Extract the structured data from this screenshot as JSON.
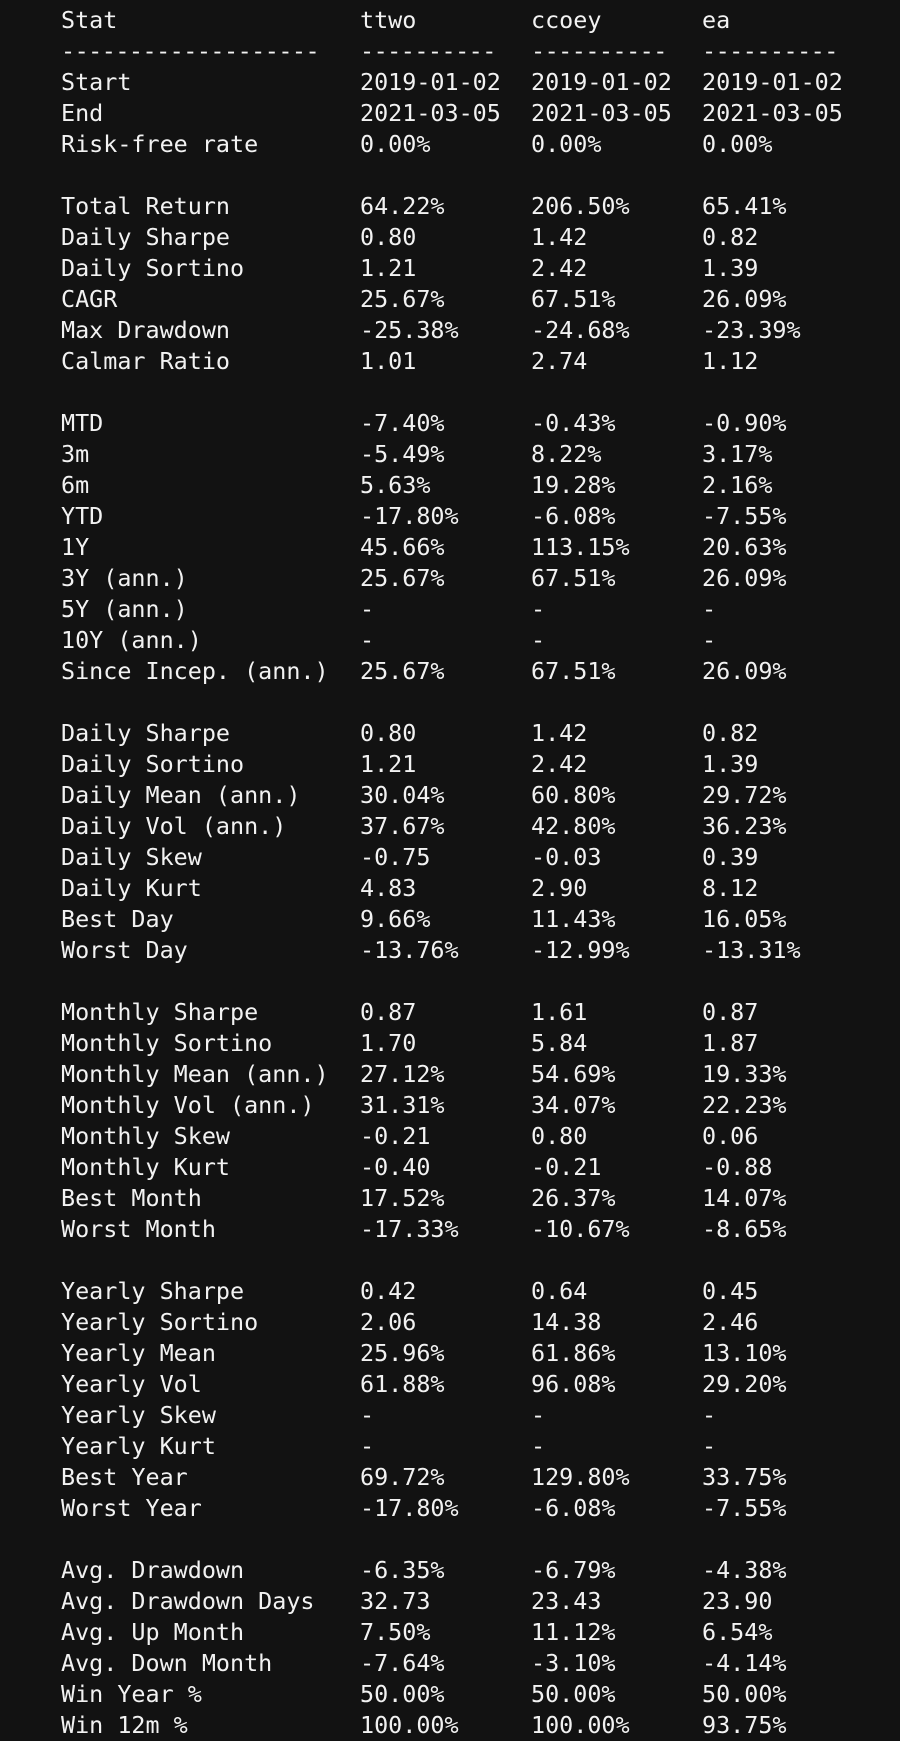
{
  "header": [
    "Stat",
    "ttwo",
    "ccoey",
    "ea"
  ],
  "separator": [
    "-------------------",
    "----------",
    "----------",
    "----------"
  ],
  "sections": [
    [
      [
        "Start",
        "2019-01-02",
        "2019-01-02",
        "2019-01-02"
      ],
      [
        "End",
        "2021-03-05",
        "2021-03-05",
        "2021-03-05"
      ],
      [
        "Risk-free rate",
        "0.00%",
        "0.00%",
        "0.00%"
      ]
    ],
    [
      [
        "Total Return",
        "64.22%",
        "206.50%",
        "65.41%"
      ],
      [
        "Daily Sharpe",
        "0.80",
        "1.42",
        "0.82"
      ],
      [
        "Daily Sortino",
        "1.21",
        "2.42",
        "1.39"
      ],
      [
        "CAGR",
        "25.67%",
        "67.51%",
        "26.09%"
      ],
      [
        "Max Drawdown",
        "-25.38%",
        "-24.68%",
        "-23.39%"
      ],
      [
        "Calmar Ratio",
        "1.01",
        "2.74",
        "1.12"
      ]
    ],
    [
      [
        "MTD",
        "-7.40%",
        "-0.43%",
        "-0.90%"
      ],
      [
        "3m",
        "-5.49%",
        "8.22%",
        "3.17%"
      ],
      [
        "6m",
        "5.63%",
        "19.28%",
        "2.16%"
      ],
      [
        "YTD",
        "-17.80%",
        "-6.08%",
        "-7.55%"
      ],
      [
        "1Y",
        "45.66%",
        "113.15%",
        "20.63%"
      ],
      [
        "3Y (ann.)",
        "25.67%",
        "67.51%",
        "26.09%"
      ],
      [
        "5Y (ann.)",
        "-",
        "-",
        "-"
      ],
      [
        "10Y (ann.)",
        "-",
        "-",
        "-"
      ],
      [
        "Since Incep. (ann.)",
        "25.67%",
        "67.51%",
        "26.09%"
      ]
    ],
    [
      [
        "Daily Sharpe",
        "0.80",
        "1.42",
        "0.82"
      ],
      [
        "Daily Sortino",
        "1.21",
        "2.42",
        "1.39"
      ],
      [
        "Daily Mean (ann.)",
        "30.04%",
        "60.80%",
        "29.72%"
      ],
      [
        "Daily Vol (ann.)",
        "37.67%",
        "42.80%",
        "36.23%"
      ],
      [
        "Daily Skew",
        "-0.75",
        "-0.03",
        "0.39"
      ],
      [
        "Daily Kurt",
        "4.83",
        "2.90",
        "8.12"
      ],
      [
        "Best Day",
        "9.66%",
        "11.43%",
        "16.05%"
      ],
      [
        "Worst Day",
        "-13.76%",
        "-12.99%",
        "-13.31%"
      ]
    ],
    [
      [
        "Monthly Sharpe",
        "0.87",
        "1.61",
        "0.87"
      ],
      [
        "Monthly Sortino",
        "1.70",
        "5.84",
        "1.87"
      ],
      [
        "Monthly Mean (ann.)",
        "27.12%",
        "54.69%",
        "19.33%"
      ],
      [
        "Monthly Vol (ann.)",
        "31.31%",
        "34.07%",
        "22.23%"
      ],
      [
        "Monthly Skew",
        "-0.21",
        "0.80",
        "0.06"
      ],
      [
        "Monthly Kurt",
        "-0.40",
        "-0.21",
        "-0.88"
      ],
      [
        "Best Month",
        "17.52%",
        "26.37%",
        "14.07%"
      ],
      [
        "Worst Month",
        "-17.33%",
        "-10.67%",
        "-8.65%"
      ]
    ],
    [
      [
        "Yearly Sharpe",
        "0.42",
        "0.64",
        "0.45"
      ],
      [
        "Yearly Sortino",
        "2.06",
        "14.38",
        "2.46"
      ],
      [
        "Yearly Mean",
        "25.96%",
        "61.86%",
        "13.10%"
      ],
      [
        "Yearly Vol",
        "61.88%",
        "96.08%",
        "29.20%"
      ],
      [
        "Yearly Skew",
        "-",
        "-",
        "-"
      ],
      [
        "Yearly Kurt",
        "-",
        "-",
        "-"
      ],
      [
        "Best Year",
        "69.72%",
        "129.80%",
        "33.75%"
      ],
      [
        "Worst Year",
        "-17.80%",
        "-6.08%",
        "-7.55%"
      ]
    ],
    [
      [
        "Avg. Drawdown",
        "-6.35%",
        "-6.79%",
        "-4.38%"
      ],
      [
        "Avg. Drawdown Days",
        "32.73",
        "23.43",
        "23.90"
      ],
      [
        "Avg. Up Month",
        "7.50%",
        "11.12%",
        "6.54%"
      ],
      [
        "Avg. Down Month",
        "-7.64%",
        "-3.10%",
        "-4.14%"
      ],
      [
        "Win Year %",
        "50.00%",
        "50.00%",
        "50.00%"
      ],
      [
        "Win 12m %",
        "100.00%",
        "100.00%",
        "93.75%"
      ]
    ]
  ]
}
